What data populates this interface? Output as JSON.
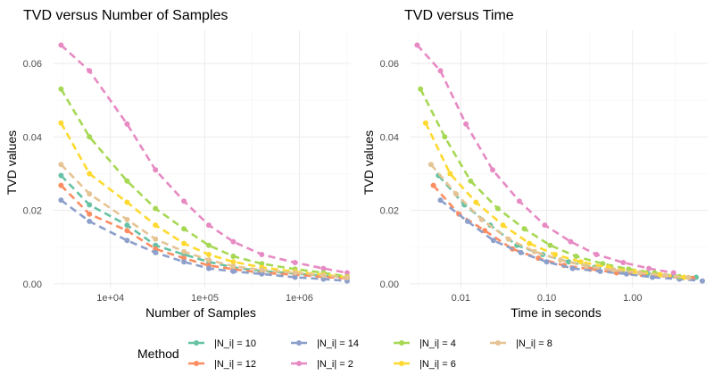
{
  "legend": {
    "title": "Method",
    "position": "bottom",
    "entries": [
      {
        "name": "|N_i| = 10",
        "color": "#66c2a5"
      },
      {
        "name": "|N_i| = 12",
        "color": "#fc8d62"
      },
      {
        "name": "|N_i| = 14",
        "color": "#8da0cb"
      },
      {
        "name": "|N_i| = 2",
        "color": "#e78ac3"
      },
      {
        "name": "|N_i| = 4",
        "color": "#a6d854"
      },
      {
        "name": "|N_i| = 6",
        "color": "#ffd92f"
      },
      {
        "name": "|N_i| = 8",
        "color": "#e5c494"
      }
    ]
  },
  "chart_data": [
    {
      "type": "line",
      "title": "TVD versus Number of Samples",
      "xlabel": "Number of Samples",
      "ylabel": "TVD values",
      "xscale": "log10",
      "xlim": [
        2500,
        3500000
      ],
      "ylim": [
        -0.001,
        0.069
      ],
      "x_ticks": [
        10000,
        100000,
        1000000
      ],
      "x_tick_labels": [
        "1e+04",
        "1e+05",
        "1e+06"
      ],
      "y_ticks": [
        0,
        0.02,
        0.04,
        0.06
      ],
      "y_tick_labels": [
        "0.00",
        "0.02",
        "0.04",
        "0.06"
      ],
      "grid": true,
      "line_style": "dashed",
      "x": [
        3000,
        6000,
        15000,
        30000,
        60000,
        110000,
        200000,
        400000,
        900000,
        1800000,
        3200000
      ],
      "series": [
        {
          "name": "|N_i| = 10",
          "color": "#66c2a5",
          "values": [
            0.0295,
            0.0215,
            0.016,
            0.0105,
            0.008,
            0.006,
            0.0045,
            0.0035,
            0.0028,
            0.0022,
            0.0018
          ]
        },
        {
          "name": "|N_i| = 12",
          "color": "#fc8d62",
          "values": [
            0.0268,
            0.019,
            0.0145,
            0.0095,
            0.007,
            0.005,
            0.004,
            0.003,
            0.0025,
            0.0019,
            0.0015
          ]
        },
        {
          "name": "|N_i| = 14",
          "color": "#8da0cb",
          "values": [
            0.0228,
            0.017,
            0.0118,
            0.0085,
            0.006,
            0.0042,
            0.0034,
            0.0027,
            0.0018,
            0.0013,
            0.0008
          ]
        },
        {
          "name": "|N_i| = 2",
          "color": "#e78ac3",
          "values": [
            0.065,
            0.058,
            0.0435,
            0.031,
            0.0225,
            0.016,
            0.0115,
            0.008,
            0.0058,
            0.0042,
            0.003
          ]
        },
        {
          "name": "|N_i| = 4",
          "color": "#a6d854",
          "values": [
            0.053,
            0.04,
            0.028,
            0.0205,
            0.015,
            0.0105,
            0.0075,
            0.0055,
            0.004,
            0.003,
            0.002
          ]
        },
        {
          "name": "|N_i| = 6",
          "color": "#ffd92f",
          "values": [
            0.0438,
            0.03,
            0.0222,
            0.016,
            0.011,
            0.008,
            0.006,
            0.0045,
            0.0033,
            0.0025,
            0.0018
          ]
        },
        {
          "name": "|N_i| = 8",
          "color": "#e5c494",
          "values": [
            0.0325,
            0.0245,
            0.0175,
            0.0122,
            0.0088,
            0.0065,
            0.0048,
            0.0038,
            0.003,
            0.0023,
            0.0017
          ]
        }
      ]
    },
    {
      "type": "line",
      "title": "TVD versus Time",
      "xlabel": "Time in seconds",
      "ylabel": "TVD values",
      "xscale": "log10",
      "xlim": [
        0.0026,
        7.5
      ],
      "ylim": [
        -0.001,
        0.069
      ],
      "x_ticks": [
        0.01,
        0.1,
        1
      ],
      "x_tick_labels": [
        "0.01",
        "0.10",
        "1.00"
      ],
      "y_ticks": [
        0,
        0.02,
        0.04,
        0.06
      ],
      "y_tick_labels": [
        "0.00",
        "0.02",
        "0.04",
        "0.06"
      ],
      "grid": true,
      "line_style": "dashed",
      "series": [
        {
          "name": "|N_i| = 10",
          "color": "#66c2a5",
          "x": [
            0.0055,
            0.011,
            0.022,
            0.045,
            0.09,
            0.18,
            0.36,
            0.75,
            1.5,
            3.0,
            5.5
          ],
          "values": [
            0.0295,
            0.0215,
            0.016,
            0.0105,
            0.008,
            0.006,
            0.0045,
            0.0035,
            0.0028,
            0.0022,
            0.0018
          ]
        },
        {
          "name": "|N_i| = 12",
          "color": "#fc8d62",
          "x": [
            0.0048,
            0.0095,
            0.019,
            0.04,
            0.08,
            0.16,
            0.32,
            0.65,
            1.3,
            2.7,
            5.0
          ],
          "values": [
            0.0268,
            0.019,
            0.0145,
            0.0095,
            0.007,
            0.005,
            0.004,
            0.003,
            0.0025,
            0.0019,
            0.0015
          ]
        },
        {
          "name": "|N_i| = 14",
          "color": "#8da0cb",
          "x": [
            0.0058,
            0.012,
            0.024,
            0.05,
            0.1,
            0.2,
            0.42,
            0.85,
            1.7,
            3.5,
            6.5
          ],
          "values": [
            0.0228,
            0.017,
            0.0118,
            0.0085,
            0.006,
            0.0042,
            0.0034,
            0.0027,
            0.0018,
            0.0013,
            0.0008
          ]
        },
        {
          "name": "|N_i| = 2",
          "color": "#e78ac3",
          "x": [
            0.0031,
            0.0058,
            0.0115,
            0.0235,
            0.048,
            0.095,
            0.19,
            0.38,
            0.78,
            1.55,
            3.0
          ],
          "values": [
            0.065,
            0.058,
            0.0435,
            0.031,
            0.0225,
            0.016,
            0.0115,
            0.008,
            0.0058,
            0.0042,
            0.003
          ]
        },
        {
          "name": "|N_i| = 4",
          "color": "#a6d854",
          "x": [
            0.0034,
            0.0065,
            0.013,
            0.027,
            0.055,
            0.11,
            0.22,
            0.45,
            0.9,
            1.8,
            3.5
          ],
          "values": [
            0.053,
            0.04,
            0.028,
            0.0205,
            0.015,
            0.0105,
            0.0075,
            0.0055,
            0.004,
            0.003,
            0.002
          ]
        },
        {
          "name": "|N_i| = 6",
          "color": "#ffd92f",
          "x": [
            0.0039,
            0.0075,
            0.015,
            0.031,
            0.063,
            0.125,
            0.25,
            0.52,
            1.05,
            2.1,
            4.0
          ],
          "values": [
            0.0438,
            0.03,
            0.0222,
            0.016,
            0.011,
            0.008,
            0.006,
            0.0045,
            0.0033,
            0.0025,
            0.0018
          ]
        },
        {
          "name": "|N_i| = 8",
          "color": "#e5c494",
          "x": [
            0.0045,
            0.0088,
            0.0175,
            0.036,
            0.072,
            0.145,
            0.29,
            0.6,
            1.2,
            2.4,
            4.5
          ],
          "values": [
            0.0325,
            0.0245,
            0.0175,
            0.0122,
            0.0088,
            0.0065,
            0.0048,
            0.0038,
            0.003,
            0.0023,
            0.0017
          ]
        }
      ]
    }
  ]
}
